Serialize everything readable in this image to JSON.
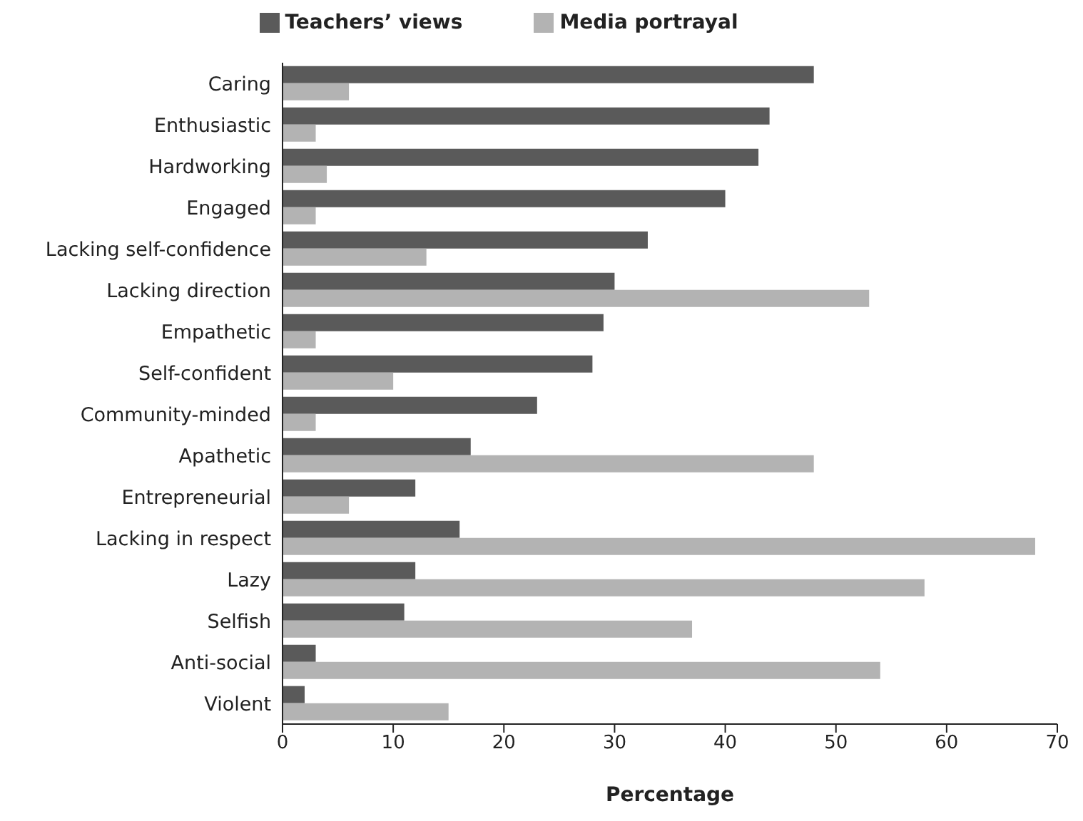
{
  "chart_data": {
    "type": "bar",
    "orientation": "horizontal",
    "xlabel": "Percentage",
    "categories": [
      "Caring",
      "Enthusiastic",
      "Hardworking",
      "Engaged",
      "Lacking self-confidence",
      "Lacking direction",
      "Empathetic",
      "Self-confident",
      "Community-minded",
      "Apathetic",
      "Entrepreneurial",
      "Lacking in respect",
      "Lazy",
      "Selfish",
      "Anti-social",
      "Violent"
    ],
    "series": [
      {
        "name": "Teachers’ views",
        "color": "#5a5a5a",
        "values": [
          48,
          44,
          43,
          40,
          33,
          30,
          29,
          28,
          23,
          17,
          12,
          16,
          12,
          11,
          3,
          2
        ]
      },
      {
        "name": "Media portrayal",
        "color": "#b3b3b3",
        "values": [
          6,
          3,
          4,
          3,
          13,
          53,
          3,
          10,
          3,
          48,
          6,
          68,
          58,
          37,
          54,
          15
        ]
      }
    ],
    "xlim": [
      0,
      70
    ],
    "xticks": [
      0,
      10,
      20,
      30,
      40,
      50,
      60,
      70
    ],
    "grid": false,
    "legend": "top"
  }
}
